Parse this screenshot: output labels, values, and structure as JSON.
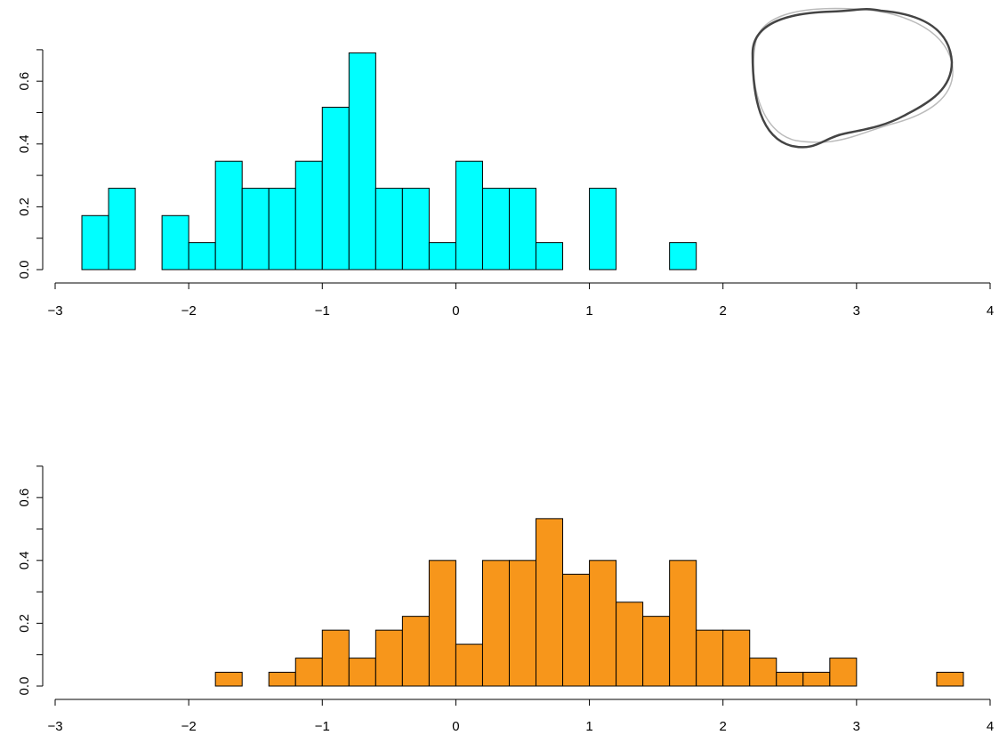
{
  "chart_data": [
    {
      "type": "histogram",
      "bins": [
        -2.8,
        -2.6,
        -2.4,
        -2.2,
        -2.0,
        -1.8,
        -1.6,
        -1.4,
        -1.2,
        -1.0,
        -0.8,
        -0.6,
        -0.4,
        -0.2,
        0,
        0.2,
        0.4,
        0.6,
        0.8,
        1.0,
        1.2,
        1.4,
        1.6,
        1.8,
        2.0,
        2.2,
        2.4,
        2.6,
        2.8,
        3.0,
        3.2,
        3.4,
        3.6,
        3.8
      ],
      "values": [
        0.172,
        0.259,
        0,
        0.172,
        0.086,
        0.345,
        0.259,
        0.259,
        0.345,
        0.517,
        0.69,
        0.259,
        0.259,
        0.086,
        0.345,
        0.259,
        0.259,
        0.086,
        0,
        0.259,
        0,
        0,
        0.086,
        0,
        0,
        0,
        0,
        0,
        0,
        0,
        0,
        0,
        0
      ],
      "color": "#00ffff",
      "xlim": [
        -3,
        4
      ],
      "ylim": [
        0,
        0.7
      ],
      "xticks": [
        {
          "value": -3,
          "label": "−3"
        },
        {
          "value": -2,
          "label": "−2"
        },
        {
          "value": -1,
          "label": "−1"
        },
        0,
        1,
        2,
        3,
        4
      ],
      "yticks": [
        {
          "value": 0,
          "label": "0.0"
        },
        0.2,
        0.4,
        0.6
      ],
      "minor_yticks": [
        0.1,
        0.3,
        0.5,
        0.7
      ]
    },
    {
      "type": "histogram",
      "bins": [
        -2.8,
        -2.6,
        -2.4,
        -2.2,
        -2.0,
        -1.8,
        -1.6,
        -1.4,
        -1.2,
        -1.0,
        -0.8,
        -0.6,
        -0.4,
        -0.2,
        0,
        0.2,
        0.4,
        0.6,
        0.8,
        1.0,
        1.2,
        1.4,
        1.6,
        1.8,
        2.0,
        2.2,
        2.4,
        2.6,
        2.8,
        3.0,
        3.2,
        3.4,
        3.6,
        3.8
      ],
      "values": [
        0,
        0,
        0,
        0,
        0,
        0.044,
        0,
        0.044,
        0.089,
        0.178,
        0.089,
        0.178,
        0.222,
        0.4,
        0.133,
        0.4,
        0.4,
        0.533,
        0.356,
        0.4,
        0.267,
        0.222,
        0.4,
        0.178,
        0.178,
        0.089,
        0.044,
        0.044,
        0.089,
        0,
        0,
        0,
        0.044
      ],
      "color": "#f7961b",
      "xlim": [
        -3,
        4
      ],
      "ylim": [
        0,
        0.7
      ],
      "xticks": [
        {
          "value": -3,
          "label": "−3"
        },
        {
          "value": -2,
          "label": "−2"
        },
        {
          "value": -1,
          "label": "−1"
        },
        0,
        1,
        2,
        3,
        4
      ],
      "yticks": [
        {
          "value": 0,
          "label": "0.0"
        },
        0.2,
        0.4,
        0.6
      ],
      "minor_yticks": [
        0.1,
        0.3,
        0.5,
        0.7
      ]
    }
  ]
}
